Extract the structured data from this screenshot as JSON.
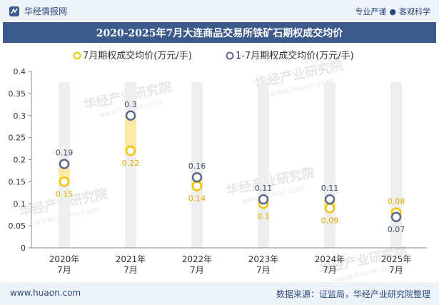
{
  "header": {
    "brand": "华经情报网",
    "tagline_left": "专业严谨",
    "tagline_right": "客观科学"
  },
  "title": "2020-2025年7月大连商品交易所铁矿石期权成交均价",
  "watermark": "华经产业研究院",
  "watermark_url": "www.huaon.com",
  "footer": {
    "website": "www.huaon.com",
    "source": "数据来源：证监局，华经产业研究院整理"
  },
  "colors": {
    "series1": "#f5c400",
    "series2": "#5b6b8c",
    "band": "#fde9a6",
    "column": "#eeeeee",
    "title_bg": "#3d5a8c"
  },
  "chart_data": {
    "type": "line",
    "categories": [
      "2020年\n7月",
      "2021年\n7月",
      "2022年\n7月",
      "2023年\n7月",
      "2024年\n7月",
      "2025年\n7月"
    ],
    "series": [
      {
        "name": "7月期权成交均价(万元/手)",
        "values": [
          0.15,
          0.22,
          0.14,
          0.1,
          0.09,
          0.08
        ]
      },
      {
        "name": "1-7月期权成交均价(万元/手)",
        "values": [
          0.19,
          0.3,
          0.16,
          0.11,
          0.11,
          0.07
        ]
      }
    ],
    "ylim": [
      0,
      0.4
    ],
    "yticks": [
      "0",
      "0.05",
      "0.1",
      "0.15",
      "0.2",
      "0.25",
      "0.3",
      "0.35",
      "0.4"
    ],
    "legend_position": "top",
    "grid": false
  }
}
